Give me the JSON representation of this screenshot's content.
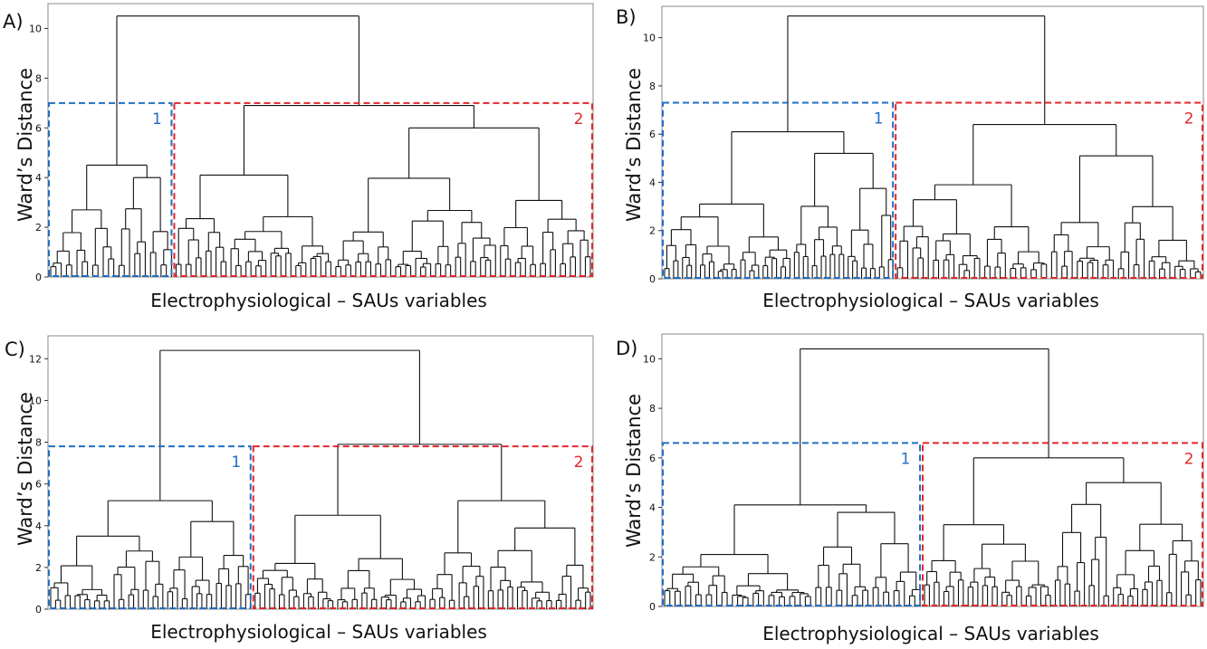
{
  "colors": {
    "cluster1": "#1f6fc5",
    "cluster2": "#e3262a",
    "tree": "#111111",
    "frame": "#888888"
  },
  "chart_data": [
    {
      "type": "dendrogram",
      "panel": "A)",
      "ylabel": "Ward’s Distance",
      "xlabel": "Electrophysiological – SAUs variables",
      "ylim": [
        0,
        11
      ],
      "yticks": [
        0,
        2,
        4,
        6,
        8,
        10
      ],
      "root_height": 10.5,
      "cut_height": 7.0,
      "cluster_labels": [
        "1",
        "2"
      ],
      "cluster1": {
        "height": 4.5,
        "leaves": 24,
        "sub": [
          2.7,
          4.0
        ],
        "label": "1"
      },
      "cluster2": {
        "height": 6.9,
        "leaves": 84,
        "sub": [
          4.1,
          6.0
        ],
        "label": "2"
      }
    },
    {
      "type": "dendrogram",
      "panel": "B)",
      "ylabel": "Ward’s Distance",
      "xlabel": "Electrophysiological – SAUs variables",
      "ylim": [
        0,
        11.3
      ],
      "yticks": [
        0,
        2,
        4,
        6,
        8,
        10
      ],
      "root_height": 10.9,
      "cut_height": 7.3,
      "cluster_labels": [
        "1",
        "2"
      ],
      "cluster1": {
        "height": 6.1,
        "leaves": 52,
        "sub": [
          3.1,
          5.2
        ],
        "label": "1"
      },
      "cluster2": {
        "height": 6.4,
        "leaves": 60,
        "sub": [
          3.9,
          5.1
        ],
        "label": "2"
      }
    },
    {
      "type": "dendrogram",
      "panel": "C)",
      "ylabel": "Ward’s Distance",
      "xlabel": "Electrophysiological – SAUs variables",
      "ylim": [
        0,
        13.1
      ],
      "yticks": [
        0,
        2,
        4,
        6,
        8,
        10,
        12
      ],
      "root_height": 12.4,
      "cut_height": 7.8,
      "cluster_labels": [
        "1",
        "2"
      ],
      "cluster1": {
        "height": 5.2,
        "leaves": 42,
        "sub": [
          3.5,
          4.2
        ],
        "label": "1"
      },
      "cluster2": {
        "height": 7.9,
        "leaves": 70,
        "sub": [
          4.5,
          5.2
        ],
        "label": "2"
      }
    },
    {
      "type": "dendrogram",
      "panel": "D)",
      "ylabel": "Ward’s Distance",
      "xlabel": "Electrophysiological – SAUs variables",
      "ylim": [
        0,
        11
      ],
      "yticks": [
        0,
        2,
        4,
        6,
        8,
        10
      ],
      "root_height": 10.4,
      "cut_height": 6.6,
      "cluster_labels": [
        "1",
        "2"
      ],
      "cluster1": {
        "height": 4.1,
        "leaves": 50,
        "sub": [
          2.1,
          3.8
        ],
        "label": "1"
      },
      "cluster2": {
        "height": 6.0,
        "leaves": 58,
        "sub": [
          3.3,
          5.0
        ],
        "label": "2"
      }
    }
  ]
}
